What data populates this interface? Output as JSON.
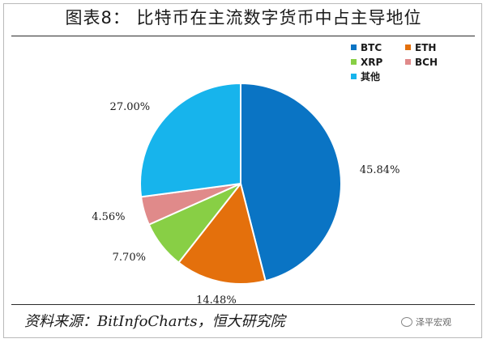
{
  "title": "图表8： 比特币在主流数字货币中占主导地位",
  "source": "资料来源：BitInfoCharts，恒大研究院",
  "watermark": "泽平宏观",
  "colors": {
    "BTC": "#0a74c4",
    "ETH": "#e4700c",
    "XRP": "#88cf45",
    "BCH": "#e08a8a",
    "其他": "#17b4ec"
  },
  "chart_data": {
    "type": "pie",
    "title": "",
    "legend_position": "top-right",
    "slices": [
      {
        "name": "BTC",
        "value": 45.84,
        "label": "45.84%"
      },
      {
        "name": "ETH",
        "value": 14.48,
        "label": "14.48%"
      },
      {
        "name": "XRP",
        "value": 7.7,
        "label": "7.70%"
      },
      {
        "name": "BCH",
        "value": 4.56,
        "label": "4.56%"
      },
      {
        "name": "其他",
        "value": 27.0,
        "label": "27.00%"
      }
    ],
    "legend": [
      "BTC",
      "ETH",
      "XRP",
      "BCH",
      "其他"
    ]
  }
}
